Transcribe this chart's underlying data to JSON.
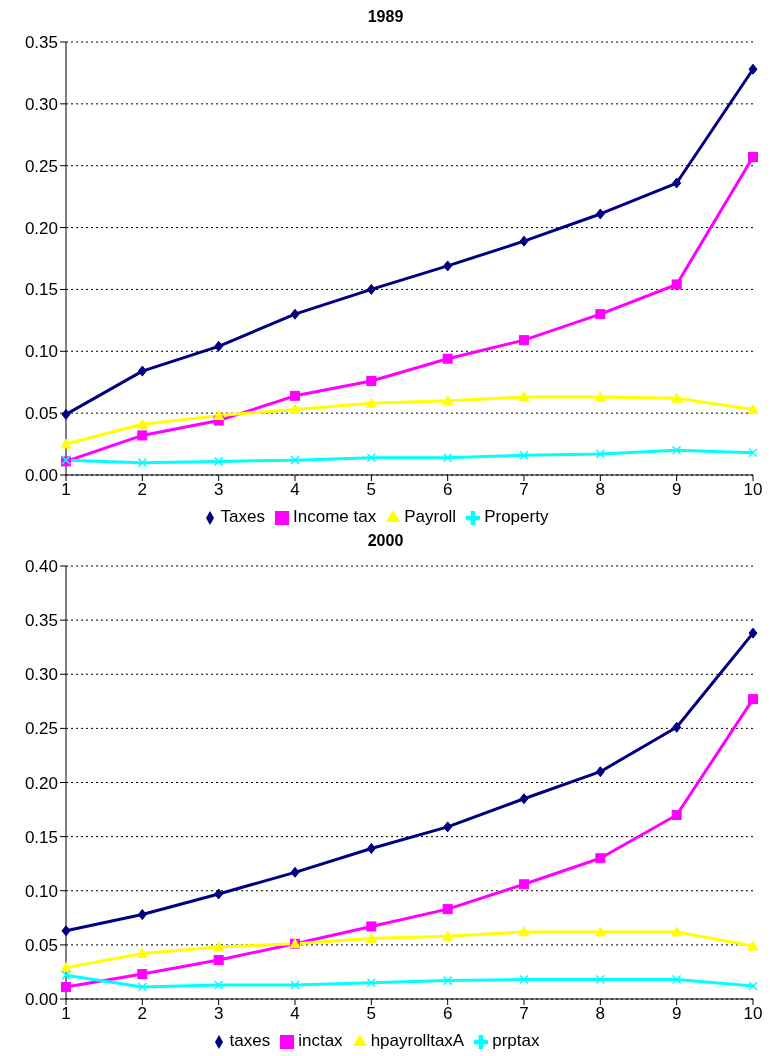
{
  "chart_data": [
    {
      "type": "line",
      "title": "1989",
      "categories": [
        "1",
        "2",
        "3",
        "4",
        "5",
        "6",
        "7",
        "8",
        "9",
        "10"
      ],
      "ylim": [
        0,
        0.35
      ],
      "yticks": [
        {
          "value": 0,
          "label": "0.00"
        },
        {
          "value": 0.05,
          "label": "0.05"
        },
        {
          "value": 0.1,
          "label": "0.10"
        },
        {
          "value": 0.15,
          "label": "0.15"
        },
        {
          "value": 0.2,
          "label": "0.20"
        },
        {
          "value": 0.25,
          "label": "0.25"
        },
        {
          "value": 0.3,
          "label": "0.30"
        },
        {
          "value": 0.35,
          "label": "0.35"
        }
      ],
      "grid": "y",
      "legend": "bottom",
      "series": [
        {
          "name": "Taxes",
          "color": "#000080",
          "marker": "diamond",
          "values": [
            0.049,
            0.084,
            0.104,
            0.13,
            0.15,
            0.169,
            0.189,
            0.211,
            0.236,
            0.328
          ]
        },
        {
          "name": "Income tax",
          "color": "#ff00ff",
          "marker": "square",
          "values": [
            0.011,
            0.032,
            0.044,
            0.064,
            0.076,
            0.094,
            0.109,
            0.13,
            0.154,
            0.257
          ]
        },
        {
          "name": "Payroll",
          "color": "#ffff00",
          "marker": "triangle",
          "values": [
            0.025,
            0.041,
            0.048,
            0.053,
            0.058,
            0.06,
            0.063,
            0.063,
            0.062,
            0.053
          ]
        },
        {
          "name": "Property",
          "color": "#00ffff",
          "marker": "cross",
          "values": [
            0.012,
            0.01,
            0.011,
            0.012,
            0.014,
            0.014,
            0.016,
            0.017,
            0.02,
            0.018
          ]
        }
      ]
    },
    {
      "type": "line",
      "title": "2000",
      "categories": [
        "1",
        "2",
        "3",
        "4",
        "5",
        "6",
        "7",
        "8",
        "9",
        "10"
      ],
      "ylim": [
        0,
        0.4
      ],
      "yticks": [
        {
          "value": 0,
          "label": "0.00"
        },
        {
          "value": 0.05,
          "label": "0.05"
        },
        {
          "value": 0.1,
          "label": "0.10"
        },
        {
          "value": 0.15,
          "label": "0.15"
        },
        {
          "value": 0.2,
          "label": "0.20"
        },
        {
          "value": 0.25,
          "label": "0.25"
        },
        {
          "value": 0.3,
          "label": "0.30"
        },
        {
          "value": 0.35,
          "label": "0.35"
        },
        {
          "value": 0.4,
          "label": "0.40"
        }
      ],
      "grid": "y",
      "legend": "bottom",
      "series": [
        {
          "name": "taxes",
          "color": "#000080",
          "marker": "diamond",
          "values": [
            0.063,
            0.078,
            0.097,
            0.117,
            0.139,
            0.159,
            0.185,
            0.21,
            0.251,
            0.338
          ]
        },
        {
          "name": "inctax",
          "color": "#ff00ff",
          "marker": "square",
          "values": [
            0.011,
            0.023,
            0.036,
            0.051,
            0.067,
            0.083,
            0.106,
            0.13,
            0.17,
            0.277
          ]
        },
        {
          "name": "hpayrolltaxA",
          "color": "#ffff00",
          "marker": "triangle",
          "values": [
            0.029,
            0.042,
            0.048,
            0.051,
            0.056,
            0.058,
            0.062,
            0.062,
            0.062,
            0.049
          ]
        },
        {
          "name": "prptax",
          "color": "#00ffff",
          "marker": "cross",
          "values": [
            0.022,
            0.011,
            0.013,
            0.013,
            0.015,
            0.017,
            0.018,
            0.018,
            0.018,
            0.012
          ]
        }
      ]
    }
  ]
}
